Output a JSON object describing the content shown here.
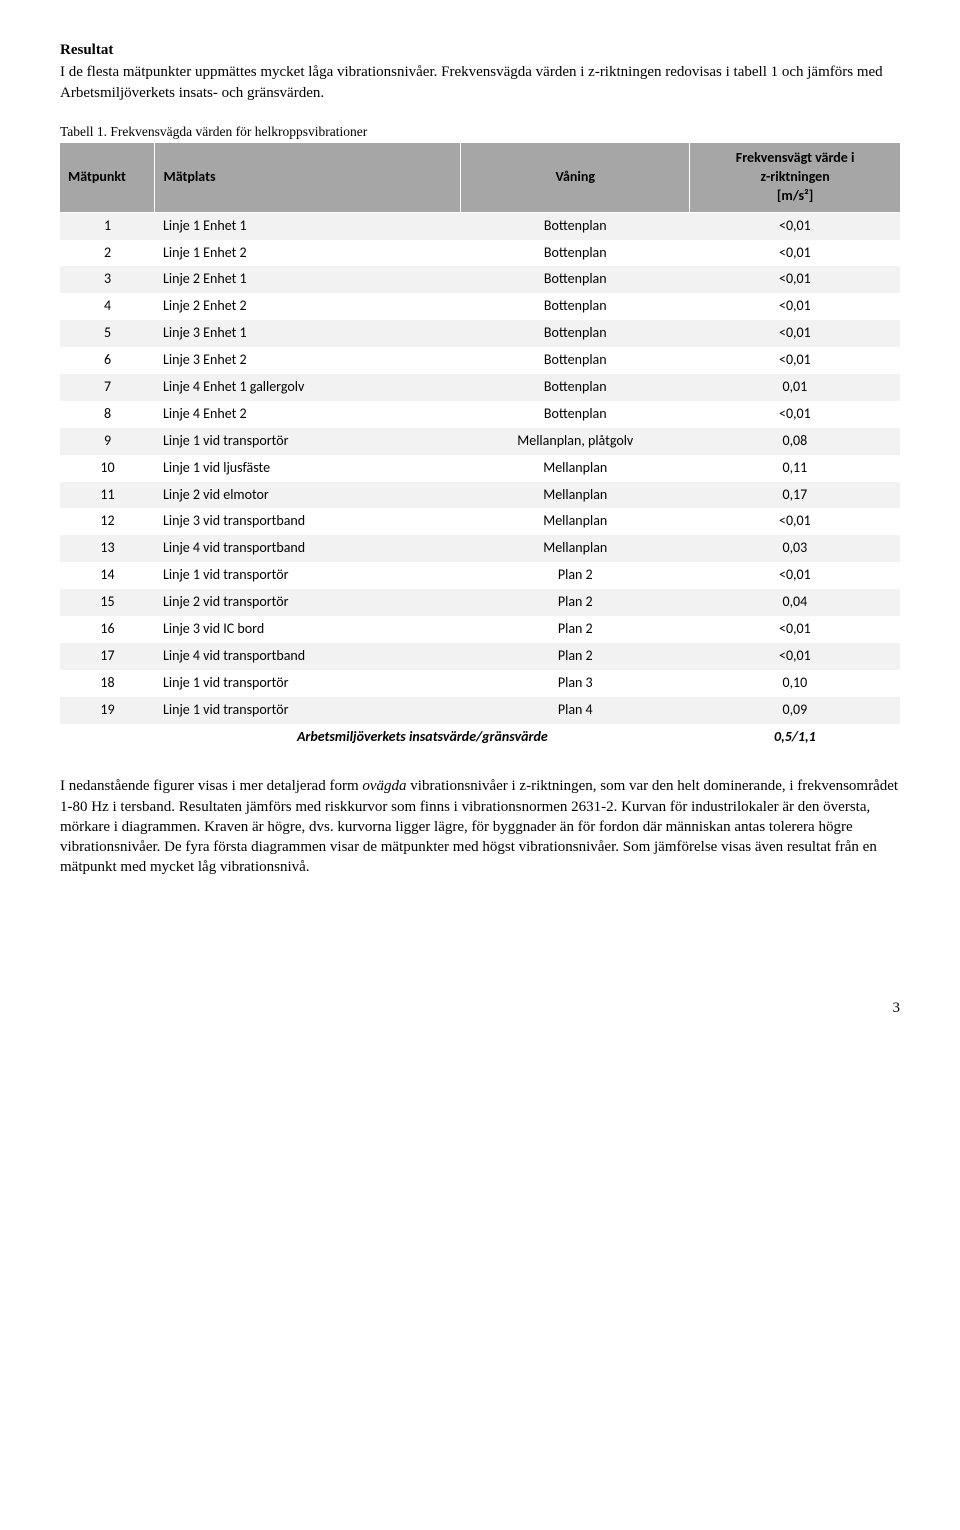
{
  "section_heading": "Resultat",
  "intro_text": "I de flesta mätpunkter uppmättes mycket låga vibrationsnivåer. Frekvensvägda värden i z-riktningen redovisas i tabell 1 och jämförs med Arbetsmiljöverkets insats- och gränsvärden.",
  "table_caption": "Tabell 1. Frekvensvägda värden för helkroppsvibrationer",
  "table": {
    "columns": {
      "c0": "Mätpunkt",
      "c1": "Mätplats",
      "c2": "Våning",
      "c3_l1": "Frekvensvägt värde i",
      "c3_l2": "z-riktningen",
      "c3_l3": "[m/s²]"
    },
    "rows": [
      {
        "n": "1",
        "plats": "Linje 1 Enhet 1",
        "vaning": "Bottenplan",
        "val": "<0,01"
      },
      {
        "n": "2",
        "plats": "Linje 1 Enhet 2",
        "vaning": "Bottenplan",
        "val": "<0,01"
      },
      {
        "n": "3",
        "plats": "Linje 2 Enhet 1",
        "vaning": "Bottenplan",
        "val": "<0,01"
      },
      {
        "n": "4",
        "plats": "Linje 2 Enhet 2",
        "vaning": "Bottenplan",
        "val": "<0,01"
      },
      {
        "n": "5",
        "plats": "Linje 3 Enhet 1",
        "vaning": "Bottenplan",
        "val": "<0,01"
      },
      {
        "n": "6",
        "plats": "Linje 3 Enhet 2",
        "vaning": "Bottenplan",
        "val": "<0,01"
      },
      {
        "n": "7",
        "plats": "Linje 4 Enhet 1 gallergolv",
        "vaning": "Bottenplan",
        "val": "0,01"
      },
      {
        "n": "8",
        "plats": "Linje 4 Enhet 2",
        "vaning": "Bottenplan",
        "val": "<0,01"
      },
      {
        "n": "9",
        "plats": "Linje 1 vid transportör",
        "vaning": "Mellanplan, plåtgolv",
        "val": "0,08"
      },
      {
        "n": "10",
        "plats": "Linje 1 vid ljusfäste",
        "vaning": "Mellanplan",
        "val": "0,11"
      },
      {
        "n": "11",
        "plats": "Linje 2 vid elmotor",
        "vaning": "Mellanplan",
        "val": "0,17"
      },
      {
        "n": "12",
        "plats": "Linje 3 vid transportband",
        "vaning": "Mellanplan",
        "val": "<0,01"
      },
      {
        "n": "13",
        "plats": "Linje 4 vid transportband",
        "vaning": "Mellanplan",
        "val": "0,03"
      },
      {
        "n": "14",
        "plats": "Linje 1 vid transportör",
        "vaning": "Plan 2",
        "val": "<0,01"
      },
      {
        "n": "15",
        "plats": "Linje 2 vid transportör",
        "vaning": "Plan 2",
        "val": "0,04"
      },
      {
        "n": "16",
        "plats": "Linje 3 vid IC bord",
        "vaning": "Plan 2",
        "val": "<0,01"
      },
      {
        "n": "17",
        "plats": "Linje 4 vid transportband",
        "vaning": "Plan 2",
        "val": "<0,01"
      },
      {
        "n": "18",
        "plats": "Linje 1 vid transportör",
        "vaning": "Plan 3",
        "val": "0,10"
      },
      {
        "n": "19",
        "plats": "Linje 1 vid transportör",
        "vaning": "Plan 4",
        "val": "0,09"
      }
    ],
    "footer_label": "Arbetsmiljöverkets insatsvärde/gränsvärde",
    "footer_value": "0,5/1,1",
    "header_bg": "#a6a6a6",
    "row_odd_bg": "#f2f2f2",
    "row_even_bg": "#ffffff"
  },
  "body_paragraph_pre": "I nedanstående figurer visas i mer detaljerad form ",
  "body_paragraph_em": "ovägda",
  "body_paragraph_post": " vibrationsnivåer i z-riktningen, som var den helt dominerande, i frekvensområdet 1-80 Hz i tersband. Resultaten jämförs med riskkurvor som finns i vibrationsnormen 2631-2. Kurvan för industrilokaler är den översta, mörkare i diagrammen. Kraven är högre, dvs. kurvorna ligger lägre, för byggnader än för fordon där människan antas tolerera högre vibrationsnivåer. De fyra första diagrammen visar de mätpunkter med högst vibrationsnivåer. Som jämförelse visas även resultat från en mätpunkt med mycket låg vibrationsnivå.",
  "page_number": "3"
}
